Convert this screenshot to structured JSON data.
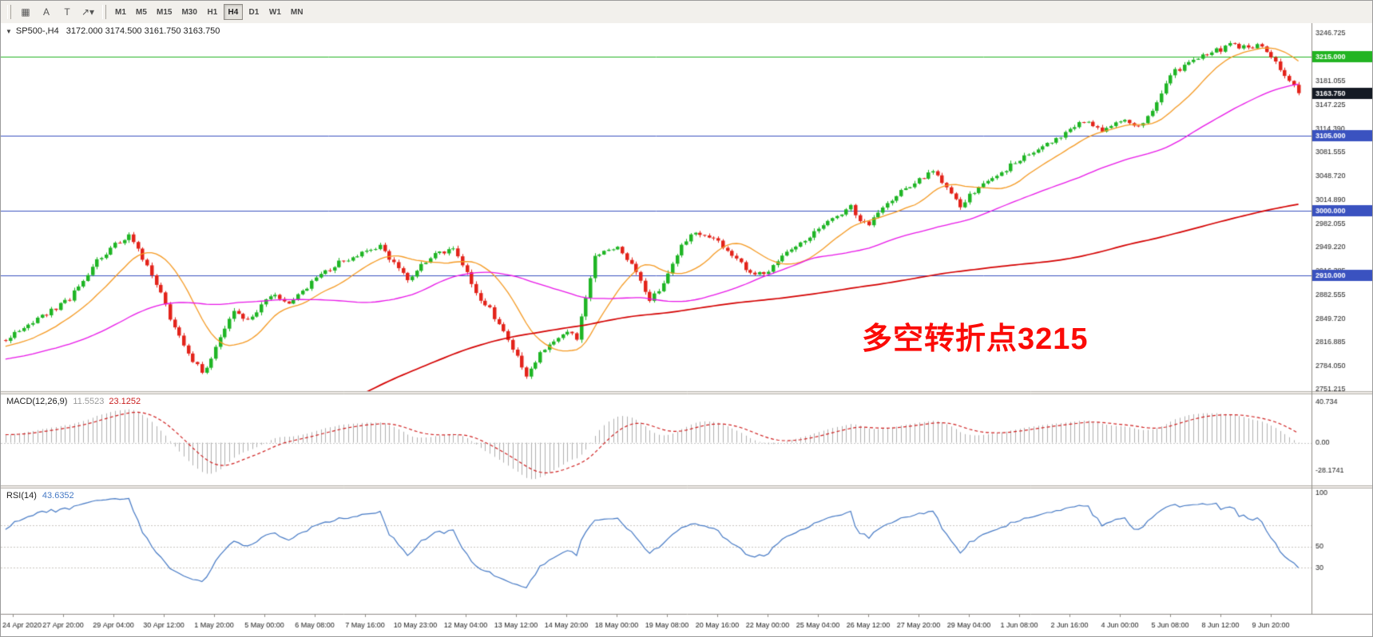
{
  "toolbar": {
    "tools": [
      {
        "name": "chart-window-tool",
        "glyph": "▦"
      },
      {
        "name": "text-annotation-tool",
        "glyph": "A"
      },
      {
        "name": "trendline-tool",
        "glyph": "T"
      },
      {
        "name": "objects-dropdown",
        "glyph": "↗",
        "caret": "▾"
      }
    ],
    "timeframes": [
      {
        "label": "M1"
      },
      {
        "label": "M5"
      },
      {
        "label": "M15"
      },
      {
        "label": "M30"
      },
      {
        "label": "H1"
      },
      {
        "label": "H4",
        "active": true
      },
      {
        "label": "D1"
      },
      {
        "label": "W1"
      },
      {
        "label": "MN"
      }
    ]
  },
  "chart": {
    "collapse_arrow": "▼",
    "symbol": "SP500-,H4",
    "ohlc": "3172.000 3174.500 3161.750 3163.750",
    "annotation": "多空转折点3215"
  },
  "macd_label": {
    "name": "MACD(12,26,9)",
    "value_main": "11.5523",
    "value_signal": "23.1252"
  },
  "rsi_label": {
    "name": "RSI(14)",
    "value": "43.6352"
  },
  "chart_data": {
    "type": "candlestick",
    "symbol": "SP500-",
    "timeframe": "H4",
    "last_bar_ohlc": {
      "open": 3172.0,
      "high": 3174.5,
      "low": 3161.75,
      "close": 3163.75
    },
    "bars": 284,
    "last_close": 3163.75,
    "y_ticks": [
      3246.725,
      3181.055,
      3147.225,
      3114.39,
      3081.555,
      3048.72,
      3014.89,
      2982.055,
      2949.22,
      2916.385,
      2882.555,
      2849.72,
      2816.885,
      2784.05,
      2751.215
    ],
    "levels": [
      {
        "value": 3215.0,
        "label": "3215.000",
        "color": "#22b422"
      },
      {
        "value": 3105.0,
        "label": "3105.000",
        "color": "#3a52c0"
      },
      {
        "value": 3000.0,
        "label": "3000.000",
        "color": "#3a52c0"
      },
      {
        "value": 2910.0,
        "label": "2910.000",
        "color": "#3a52c0"
      }
    ],
    "current_price": {
      "value": 3163.75,
      "label": "3163.750",
      "color": "#141a24"
    },
    "x_labels": [
      "24 Apr 2020",
      "27 Apr 20:00",
      "29 Apr 04:00",
      "30 Apr 12:00",
      "1 May 20:00",
      "5 May 00:00",
      "6 May 08:00",
      "7 May 16:00",
      "10 May 23:00",
      "12 May 04:00",
      "13 May 12:00",
      "14 May 20:00",
      "18 May 00:00",
      "19 May 08:00",
      "20 May 16:00",
      "22 May 00:00",
      "25 May 04:00",
      "26 May 12:00",
      "27 May 20:00",
      "29 May 04:00",
      "1 Jun 08:00",
      "2 Jun 16:00",
      "4 Jun 00:00",
      "5 Jun 08:00",
      "8 Jun 12:00",
      "9 Jun 20:00"
    ],
    "anchors": [
      [
        0,
        2820
      ],
      [
        3,
        2833
      ],
      [
        8,
        2852
      ],
      [
        14,
        2878
      ],
      [
        20,
        2932
      ],
      [
        25,
        2958
      ],
      [
        27,
        2966
      ],
      [
        30,
        2934
      ],
      [
        33,
        2900
      ],
      [
        36,
        2852
      ],
      [
        40,
        2800
      ],
      [
        43,
        2778
      ],
      [
        45,
        2792
      ],
      [
        47,
        2826
      ],
      [
        50,
        2858
      ],
      [
        53,
        2846
      ],
      [
        58,
        2884
      ],
      [
        62,
        2868
      ],
      [
        68,
        2906
      ],
      [
        73,
        2928
      ],
      [
        79,
        2946
      ],
      [
        82,
        2952
      ],
      [
        85,
        2926
      ],
      [
        88,
        2904
      ],
      [
        90,
        2918
      ],
      [
        94,
        2938
      ],
      [
        98,
        2946
      ],
      [
        101,
        2916
      ],
      [
        103,
        2882
      ],
      [
        106,
        2864
      ],
      [
        109,
        2830
      ],
      [
        112,
        2798
      ],
      [
        114,
        2772
      ],
      [
        117,
        2802
      ],
      [
        120,
        2816
      ],
      [
        123,
        2832
      ],
      [
        125,
        2822
      ],
      [
        127,
        2882
      ],
      [
        129,
        2936
      ],
      [
        134,
        2948
      ],
      [
        136,
        2930
      ],
      [
        138,
        2918
      ],
      [
        141,
        2876
      ],
      [
        144,
        2898
      ],
      [
        146,
        2924
      ],
      [
        148,
        2956
      ],
      [
        151,
        2970
      ],
      [
        156,
        2956
      ],
      [
        160,
        2932
      ],
      [
        164,
        2908
      ],
      [
        167,
        2918
      ],
      [
        171,
        2940
      ],
      [
        175,
        2958
      ],
      [
        178,
        2976
      ],
      [
        182,
        2992
      ],
      [
        185,
        3006
      ],
      [
        187,
        2988
      ],
      [
        189,
        2982
      ],
      [
        193,
        3012
      ],
      [
        197,
        3032
      ],
      [
        200,
        3044
      ],
      [
        203,
        3056
      ],
      [
        206,
        3034
      ],
      [
        209,
        3006
      ],
      [
        211,
        3022
      ],
      [
        215,
        3042
      ],
      [
        219,
        3058
      ],
      [
        222,
        3072
      ],
      [
        226,
        3086
      ],
      [
        230,
        3098
      ],
      [
        233,
        3116
      ],
      [
        237,
        3126
      ],
      [
        240,
        3108
      ],
      [
        244,
        3126
      ],
      [
        248,
        3118
      ],
      [
        251,
        3136
      ],
      [
        253,
        3160
      ],
      [
        255,
        3192
      ],
      [
        258,
        3200
      ],
      [
        261,
        3212
      ],
      [
        264,
        3222
      ],
      [
        266,
        3224
      ],
      [
        268,
        3232
      ],
      [
        270,
        3228
      ],
      [
        272,
        3226
      ],
      [
        274,
        3230
      ],
      [
        276,
        3222
      ],
      [
        278,
        3206
      ],
      [
        280,
        3190
      ],
      [
        282,
        3174
      ],
      [
        283,
        3164
      ]
    ],
    "prehistory": {
      "len": 200,
      "points": [
        [
          0,
          2950
        ],
        [
          65,
          2200
        ],
        [
          140,
          2760
        ],
        [
          199,
          2815
        ]
      ]
    },
    "moving_averages": [
      {
        "period": 14,
        "color": "#f59a23"
      },
      {
        "period": 50,
        "color": "#e817e8"
      },
      {
        "period": 200,
        "color": "#d40000"
      }
    ],
    "candle_colors": {
      "up": "#1fb525",
      "down": "#e3231a"
    },
    "macd": {
      "params": [
        12,
        26,
        9
      ],
      "ticks": [
        {
          "label": "40.734",
          "value": 40.734
        },
        {
          "label": "0.00",
          "value": 0
        },
        {
          "label": "-28.1741",
          "value": -28.1741
        }
      ],
      "histogram_color": "#b0b0b0",
      "signal_color": "#d02020"
    },
    "rsi": {
      "period": 14,
      "ticks": [
        {
          "label": "100",
          "value": 100
        },
        {
          "label": "50",
          "value": 50
        },
        {
          "label": "30",
          "value": 30
        }
      ],
      "levels": [
        30,
        50,
        70
      ],
      "line_color": "#4579c5"
    }
  }
}
